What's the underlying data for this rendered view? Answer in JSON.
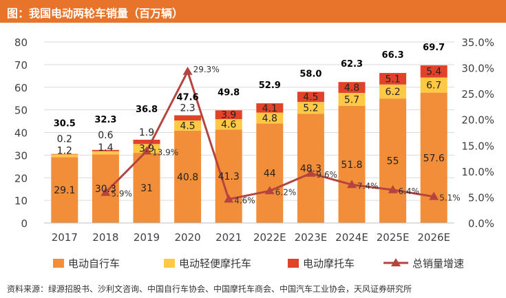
{
  "title": "图：我国电动两轮车销量（百万辆）",
  "source": "资料来源：绿源招股书、沙利文咨询、中国自行车协会、中国摩托车商会、中国汽车工业协会，天风证券研究所",
  "colors": {
    "header": "#e8742b",
    "series_bike": "#f28e3a",
    "series_light": "#ffc845",
    "series_moto": "#e0432a",
    "growth_line": "#b5443f"
  },
  "chart_data": {
    "type": "bar",
    "stacked": true,
    "categories": [
      "2017",
      "2018",
      "2019",
      "2020",
      "2021",
      "2022E",
      "2023E",
      "2024E",
      "2025E",
      "2026E"
    ],
    "series": [
      {
        "name": "电动自行车",
        "values": [
          29.1,
          30.3,
          31,
          40.8,
          41.3,
          44,
          48.3,
          51.8,
          55,
          57.6
        ],
        "labels": [
          "29.1",
          "30.3",
          "31",
          "40.8",
          "41.3",
          "44",
          "48.3",
          "51.8",
          "55",
          "57.6"
        ]
      },
      {
        "name": "电动轻便摩托车",
        "values": [
          1.2,
          1.4,
          3.9,
          4.5,
          4.6,
          4.8,
          5.2,
          5.7,
          6.2,
          6.7
        ],
        "labels": [
          "1.2",
          "1.4",
          "3.9",
          "4.5",
          "4.6",
          "4.8",
          "5.2",
          "5.7",
          "6.2",
          "6.7"
        ]
      },
      {
        "name": "电动摩托车",
        "values": [
          0.2,
          0.6,
          1.9,
          2.3,
          3.9,
          4.1,
          4.5,
          4.8,
          5.1,
          5.4
        ],
        "labels": [
          "0.2",
          "0.6",
          "1.9",
          "2.3",
          "3.9",
          "4.1",
          "4.5",
          "4.8",
          "5.1",
          "5.4"
        ]
      }
    ],
    "totals": [
      "30.5",
      "32.3",
      "36.8",
      "47.6",
      "49.8",
      "52.9",
      "58.0",
      "62.3",
      "66.3",
      "69.7"
    ],
    "line": {
      "name": "总销量增速",
      "values": [
        5.9,
        13.9,
        29.3,
        4.6,
        6.2,
        9.6,
        7.4,
        6.4,
        5.1
      ],
      "labels": [
        "5.9%",
        "13.9%",
        "29.3%",
        "4.6%",
        "6.2%",
        "9.6%",
        "7.4%",
        "6.4%",
        "5.1%"
      ]
    },
    "y_left": {
      "min": 0,
      "max": 80,
      "ticks": [
        "0",
        "10",
        "20",
        "30",
        "40",
        "50",
        "60",
        "70",
        "80"
      ]
    },
    "y_right": {
      "min": 0,
      "max": 35,
      "ticks": [
        "0.0%",
        "5.0%",
        "10.0%",
        "15.0%",
        "20.0%",
        "25.0%",
        "30.0%",
        "35.0%"
      ]
    },
    "grid": true,
    "legend_position": "bottom"
  }
}
